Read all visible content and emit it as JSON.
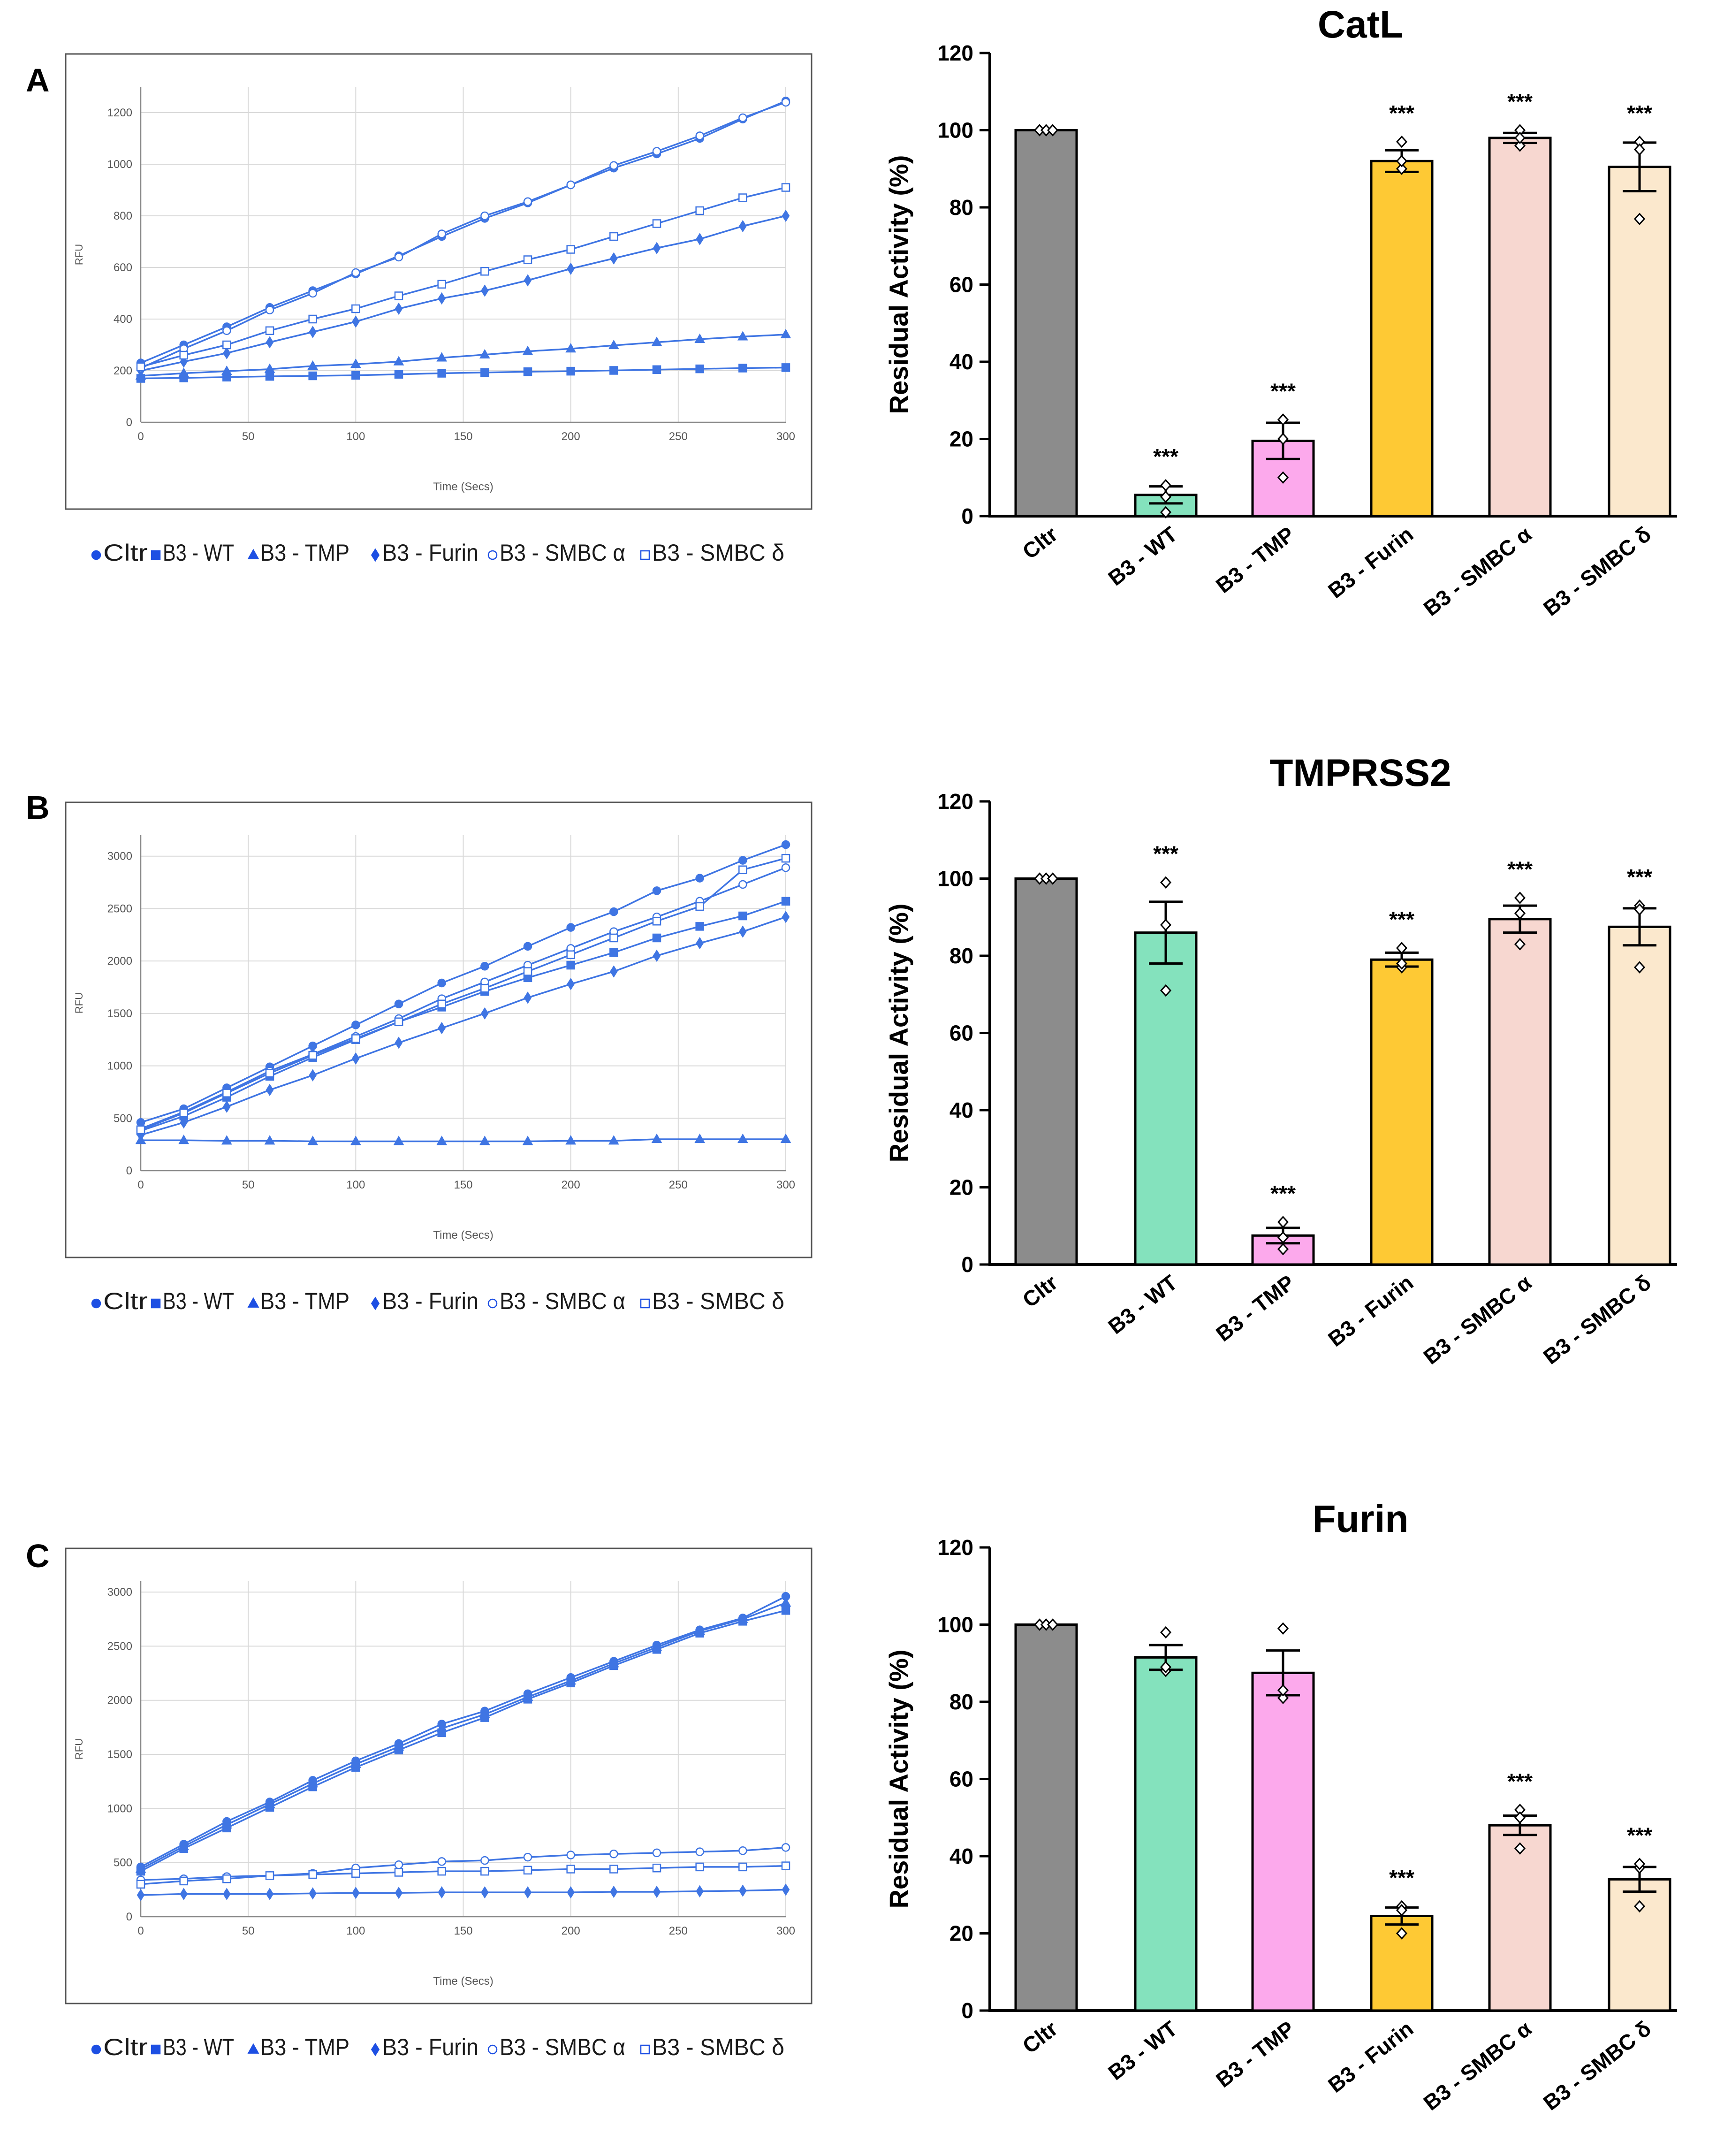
{
  "panel_labels": [
    "A",
    "B",
    "C"
  ],
  "legend": [
    {
      "marker": "filled-circle",
      "label": "Cltr"
    },
    {
      "marker": "filled-square",
      "label": "B3 - WT"
    },
    {
      "marker": "filled-triangle",
      "label": "B3 - TMP"
    },
    {
      "marker": "filled-diamond",
      "label": "B3 - Furin"
    },
    {
      "marker": "open-circle",
      "label": "B3 - SMBC α"
    },
    {
      "marker": "open-square",
      "label": "B3 - SMBC δ"
    }
  ],
  "colors": {
    "line": "#3f75e3",
    "grid": "#d9d9d9",
    "bar_cltr": "#8c8c8c",
    "bar_wt": "#84e2bd",
    "bar_tmp": "#fca9ec",
    "bar_furin": "#fec934",
    "bar_smbca": "#f7d7d0",
    "bar_smbcd": "#fbe8cd"
  },
  "chart_data": [
    {
      "type": "line",
      "panel": "A",
      "xlabel": "Time (Secs)",
      "ylabel": "RFU",
      "xlim": [
        0,
        300
      ],
      "ylim": [
        0,
        1300
      ],
      "xticks": [
        0,
        50,
        100,
        150,
        200,
        250,
        300
      ],
      "yticks": [
        0,
        200,
        400,
        600,
        800,
        1000,
        1200
      ],
      "x": [
        0,
        20,
        40,
        60,
        80,
        100,
        120,
        140,
        160,
        180,
        200,
        220,
        240,
        260,
        280,
        300
      ],
      "series": [
        {
          "name": "Cltr",
          "marker": "filled-circle",
          "values": [
            230,
            300,
            370,
            445,
            510,
            575,
            645,
            720,
            790,
            850,
            920,
            985,
            1040,
            1100,
            1175,
            1245
          ]
        },
        {
          "name": "B3 - WT",
          "marker": "filled-square",
          "values": [
            170,
            172,
            175,
            178,
            180,
            182,
            186,
            190,
            193,
            196,
            198,
            201,
            204,
            207,
            210,
            212
          ]
        },
        {
          "name": "B3 - TMP",
          "marker": "filled-triangle",
          "values": [
            180,
            190,
            198,
            206,
            218,
            225,
            235,
            250,
            262,
            275,
            285,
            298,
            310,
            322,
            332,
            340
          ]
        },
        {
          "name": "B3 - Furin",
          "marker": "filled-diamond",
          "values": [
            200,
            235,
            268,
            310,
            350,
            390,
            440,
            480,
            510,
            550,
            595,
            635,
            675,
            710,
            760,
            800
          ]
        },
        {
          "name": "B3 - SMBC α",
          "marker": "open-circle",
          "values": [
            210,
            285,
            355,
            435,
            500,
            580,
            640,
            730,
            800,
            855,
            920,
            995,
            1050,
            1110,
            1180,
            1240
          ]
        },
        {
          "name": "B3 - SMBC δ",
          "marker": "open-square",
          "values": [
            215,
            260,
            300,
            355,
            400,
            440,
            490,
            535,
            585,
            630,
            670,
            720,
            770,
            820,
            870,
            910
          ]
        }
      ]
    },
    {
      "type": "bar",
      "panel": "A",
      "title": "CatL",
      "ylabel": "Residual Activity (%)",
      "ylim": [
        0,
        120
      ],
      "yticks": [
        0,
        20,
        40,
        60,
        80,
        100,
        120
      ],
      "categories": [
        "Cltr",
        "B3 - WT",
        "B3 - TMP",
        "B3 - Furin",
        "B3 - SMBC α",
        "B3 - SMBC δ"
      ],
      "values": [
        100,
        5.5,
        19.5,
        92,
        98,
        90.5
      ],
      "errors": [
        0,
        2.2,
        4.7,
        2.8,
        1.3,
        6.3
      ],
      "points": [
        [
          100,
          100,
          100
        ],
        [
          8,
          1,
          5
        ],
        [
          25,
          10,
          20
        ],
        [
          97,
          90,
          92
        ],
        [
          100,
          96,
          98
        ],
        [
          97,
          77,
          95
        ]
      ],
      "annotations": [
        "",
        "***",
        "***",
        "***",
        "***",
        "***"
      ]
    },
    {
      "type": "line",
      "panel": "B",
      "xlabel": "Time (Secs)",
      "ylabel": "RFU",
      "xlim": [
        0,
        300
      ],
      "ylim": [
        0,
        3200
      ],
      "xticks": [
        0,
        50,
        100,
        150,
        200,
        250,
        300
      ],
      "yticks": [
        0,
        500,
        1000,
        1500,
        2000,
        2500,
        3000
      ],
      "x": [
        0,
        20,
        40,
        60,
        80,
        100,
        120,
        140,
        160,
        180,
        200,
        220,
        240,
        260,
        280,
        300
      ],
      "series": [
        {
          "name": "Cltr",
          "marker": "filled-circle",
          "values": [
            460,
            590,
            790,
            990,
            1190,
            1390,
            1590,
            1790,
            1950,
            2140,
            2320,
            2470,
            2670,
            2790,
            2960,
            3110
          ]
        },
        {
          "name": "B3 - WT",
          "marker": "filled-square",
          "values": [
            380,
            520,
            700,
            900,
            1080,
            1250,
            1420,
            1560,
            1710,
            1840,
            1960,
            2080,
            2220,
            2330,
            2430,
            2570
          ]
        },
        {
          "name": "B3 - TMP",
          "marker": "filled-triangle",
          "values": [
            290,
            290,
            285,
            285,
            280,
            280,
            280,
            280,
            280,
            280,
            285,
            285,
            300,
            300,
            300,
            300
          ]
        },
        {
          "name": "B3 - Furin",
          "marker": "filled-diamond",
          "values": [
            340,
            460,
            610,
            770,
            910,
            1070,
            1220,
            1360,
            1500,
            1650,
            1780,
            1900,
            2050,
            2170,
            2280,
            2420
          ]
        },
        {
          "name": "B3 - SMBC α",
          "marker": "open-circle",
          "values": [
            400,
            560,
            750,
            950,
            1110,
            1280,
            1450,
            1640,
            1800,
            1960,
            2120,
            2280,
            2420,
            2570,
            2730,
            2890
          ]
        },
        {
          "name": "B3 - SMBC δ",
          "marker": "open-square",
          "values": [
            390,
            550,
            740,
            930,
            1100,
            1260,
            1420,
            1590,
            1740,
            1900,
            2060,
            2220,
            2380,
            2520,
            2870,
            2980
          ]
        }
      ]
    },
    {
      "type": "bar",
      "panel": "B",
      "title": "TMPRSS2",
      "ylabel": "Residual Activity (%)",
      "ylim": [
        0,
        120
      ],
      "yticks": [
        0,
        20,
        40,
        60,
        80,
        100,
        120
      ],
      "categories": [
        "Cltr",
        "B3 - WT",
        "B3 - TMP",
        "B3 - Furin",
        "B3 - SMBC α",
        "B3 - SMBC δ"
      ],
      "values": [
        100,
        86,
        7.5,
        79,
        89.5,
        87.5
      ],
      "errors": [
        0,
        8,
        2,
        1.8,
        3.5,
        4.8
      ],
      "points": [
        [
          100,
          100,
          100
        ],
        [
          99,
          71,
          88
        ],
        [
          11,
          4,
          7
        ],
        [
          82,
          77,
          78
        ],
        [
          95,
          83,
          91
        ],
        [
          93,
          77,
          92
        ]
      ],
      "annotations": [
        "",
        "***",
        "***",
        "***",
        "***",
        "***"
      ]
    },
    {
      "type": "line",
      "panel": "C",
      "xlabel": "Time (Secs)",
      "ylabel": "RFU",
      "xlim": [
        0,
        300
      ],
      "ylim": [
        0,
        3100
      ],
      "xticks": [
        0,
        50,
        100,
        150,
        200,
        250,
        300
      ],
      "yticks": [
        0,
        500,
        1000,
        1500,
        2000,
        2500,
        3000
      ],
      "x": [
        0,
        20,
        40,
        60,
        80,
        100,
        120,
        140,
        160,
        180,
        200,
        220,
        240,
        260,
        280,
        300
      ],
      "series": [
        {
          "name": "Cltr",
          "marker": "filled-circle",
          "values": [
            460,
            670,
            880,
            1060,
            1260,
            1440,
            1600,
            1780,
            1900,
            2060,
            2210,
            2360,
            2510,
            2650,
            2760,
            2960
          ]
        },
        {
          "name": "B3 - WT",
          "marker": "filled-square",
          "values": [
            420,
            630,
            820,
            1010,
            1200,
            1380,
            1540,
            1700,
            1840,
            2010,
            2160,
            2320,
            2470,
            2620,
            2730,
            2830
          ]
        },
        {
          "name": "B3 - TMP",
          "marker": "filled-triangle",
          "values": [
            440,
            650,
            850,
            1040,
            1230,
            1410,
            1570,
            1740,
            1870,
            2030,
            2180,
            2340,
            2490,
            2640,
            2750,
            2900
          ]
        },
        {
          "name": "B3 - Furin",
          "marker": "filled-diamond",
          "values": [
            200,
            210,
            210,
            210,
            215,
            220,
            220,
            225,
            225,
            225,
            225,
            230,
            230,
            235,
            240,
            250
          ]
        },
        {
          "name": "B3 - SMBC α",
          "marker": "open-circle",
          "values": [
            340,
            350,
            370,
            380,
            400,
            450,
            480,
            510,
            520,
            550,
            570,
            580,
            590,
            600,
            610,
            640
          ]
        },
        {
          "name": "B3 - SMBC δ",
          "marker": "open-square",
          "values": [
            300,
            330,
            350,
            380,
            390,
            400,
            410,
            420,
            420,
            430,
            440,
            440,
            450,
            460,
            460,
            470
          ]
        }
      ]
    },
    {
      "type": "bar",
      "panel": "C",
      "title": "Furin",
      "ylabel": "Residual Activity (%)",
      "ylim": [
        0,
        120
      ],
      "yticks": [
        0,
        20,
        40,
        60,
        80,
        100,
        120
      ],
      "categories": [
        "Cltr",
        "B3 - WT",
        "B3 - TMP",
        "B3 - Furin",
        "B3 - SMBC α",
        "B3 - SMBC δ"
      ],
      "values": [
        100,
        91.5,
        87.5,
        24.5,
        48,
        34
      ],
      "errors": [
        0,
        3.2,
        5.8,
        2.2,
        2.5,
        3.2
      ],
      "points": [
        [
          100,
          100,
          100
        ],
        [
          98,
          88,
          89
        ],
        [
          99,
          81,
          83
        ],
        [
          27,
          20,
          26
        ],
        [
          52,
          42,
          50
        ],
        [
          37,
          27,
          38
        ]
      ],
      "annotations": [
        "",
        "",
        "",
        "***",
        "***",
        "***"
      ]
    }
  ]
}
